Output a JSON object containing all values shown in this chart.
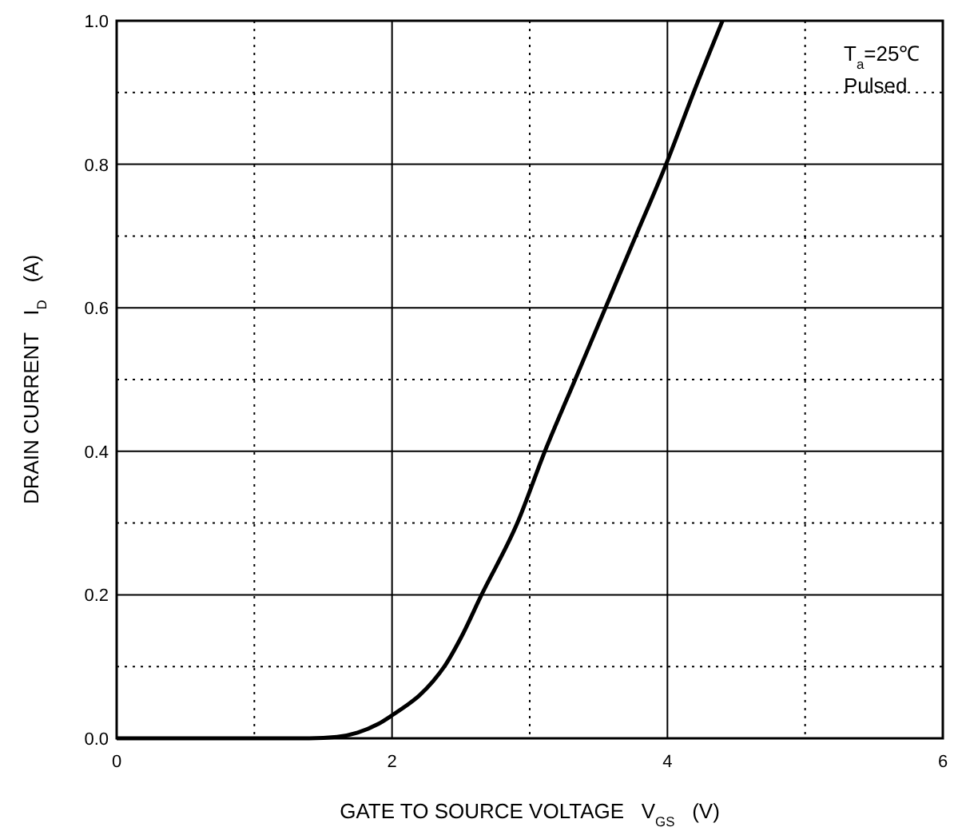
{
  "chart_data": {
    "type": "line",
    "xlabel": "GATE TO SOURCE VOLTAGE   V$_{GS}$   (V)",
    "ylabel": "DRAIN CURRENT   I$_{D}$   (A)",
    "x": [
      0,
      1.0,
      1.4,
      1.6,
      1.75,
      1.9,
      2.0,
      2.1,
      2.2,
      2.3,
      2.38,
      2.5,
      2.65,
      2.91,
      3.11,
      3.33,
      3.55,
      3.77,
      3.99,
      4.19,
      4.4
    ],
    "series": [
      {
        "color": "#000000",
        "values": [
          0,
          0,
          0,
          0.002,
          0.008,
          0.02,
          0.032,
          0.045,
          0.06,
          0.08,
          0.1,
          0.14,
          0.2,
          0.3,
          0.4,
          0.5,
          0.6,
          0.7,
          0.8,
          0.9,
          1.0
        ]
      }
    ],
    "xlim": [
      0,
      6
    ],
    "xticks": [
      0,
      {
        "value": 1,
        "label": null
      },
      2,
      {
        "value": 3,
        "label": null
      },
      4,
      {
        "value": 5,
        "label": null
      },
      6
    ],
    "ylim": [
      0,
      1
    ],
    "yticks": [
      {
        "value": 0,
        "label": "0.0"
      },
      {
        "value": 0.1,
        "label": null
      },
      0.2,
      {
        "value": 0.3,
        "label": null
      },
      0.4,
      {
        "value": 0.5,
        "label": null
      },
      0.6,
      {
        "value": 0.7,
        "label": null
      },
      0.8,
      {
        "value": 0.9,
        "label": null
      },
      {
        "value": 1,
        "label": "1.0"
      }
    ],
    "grid": true,
    "marker": "none",
    "line_style": "solid",
    "annotations": [
      "T$_{a}$=25℃",
      "Pulsed"
    ]
  }
}
